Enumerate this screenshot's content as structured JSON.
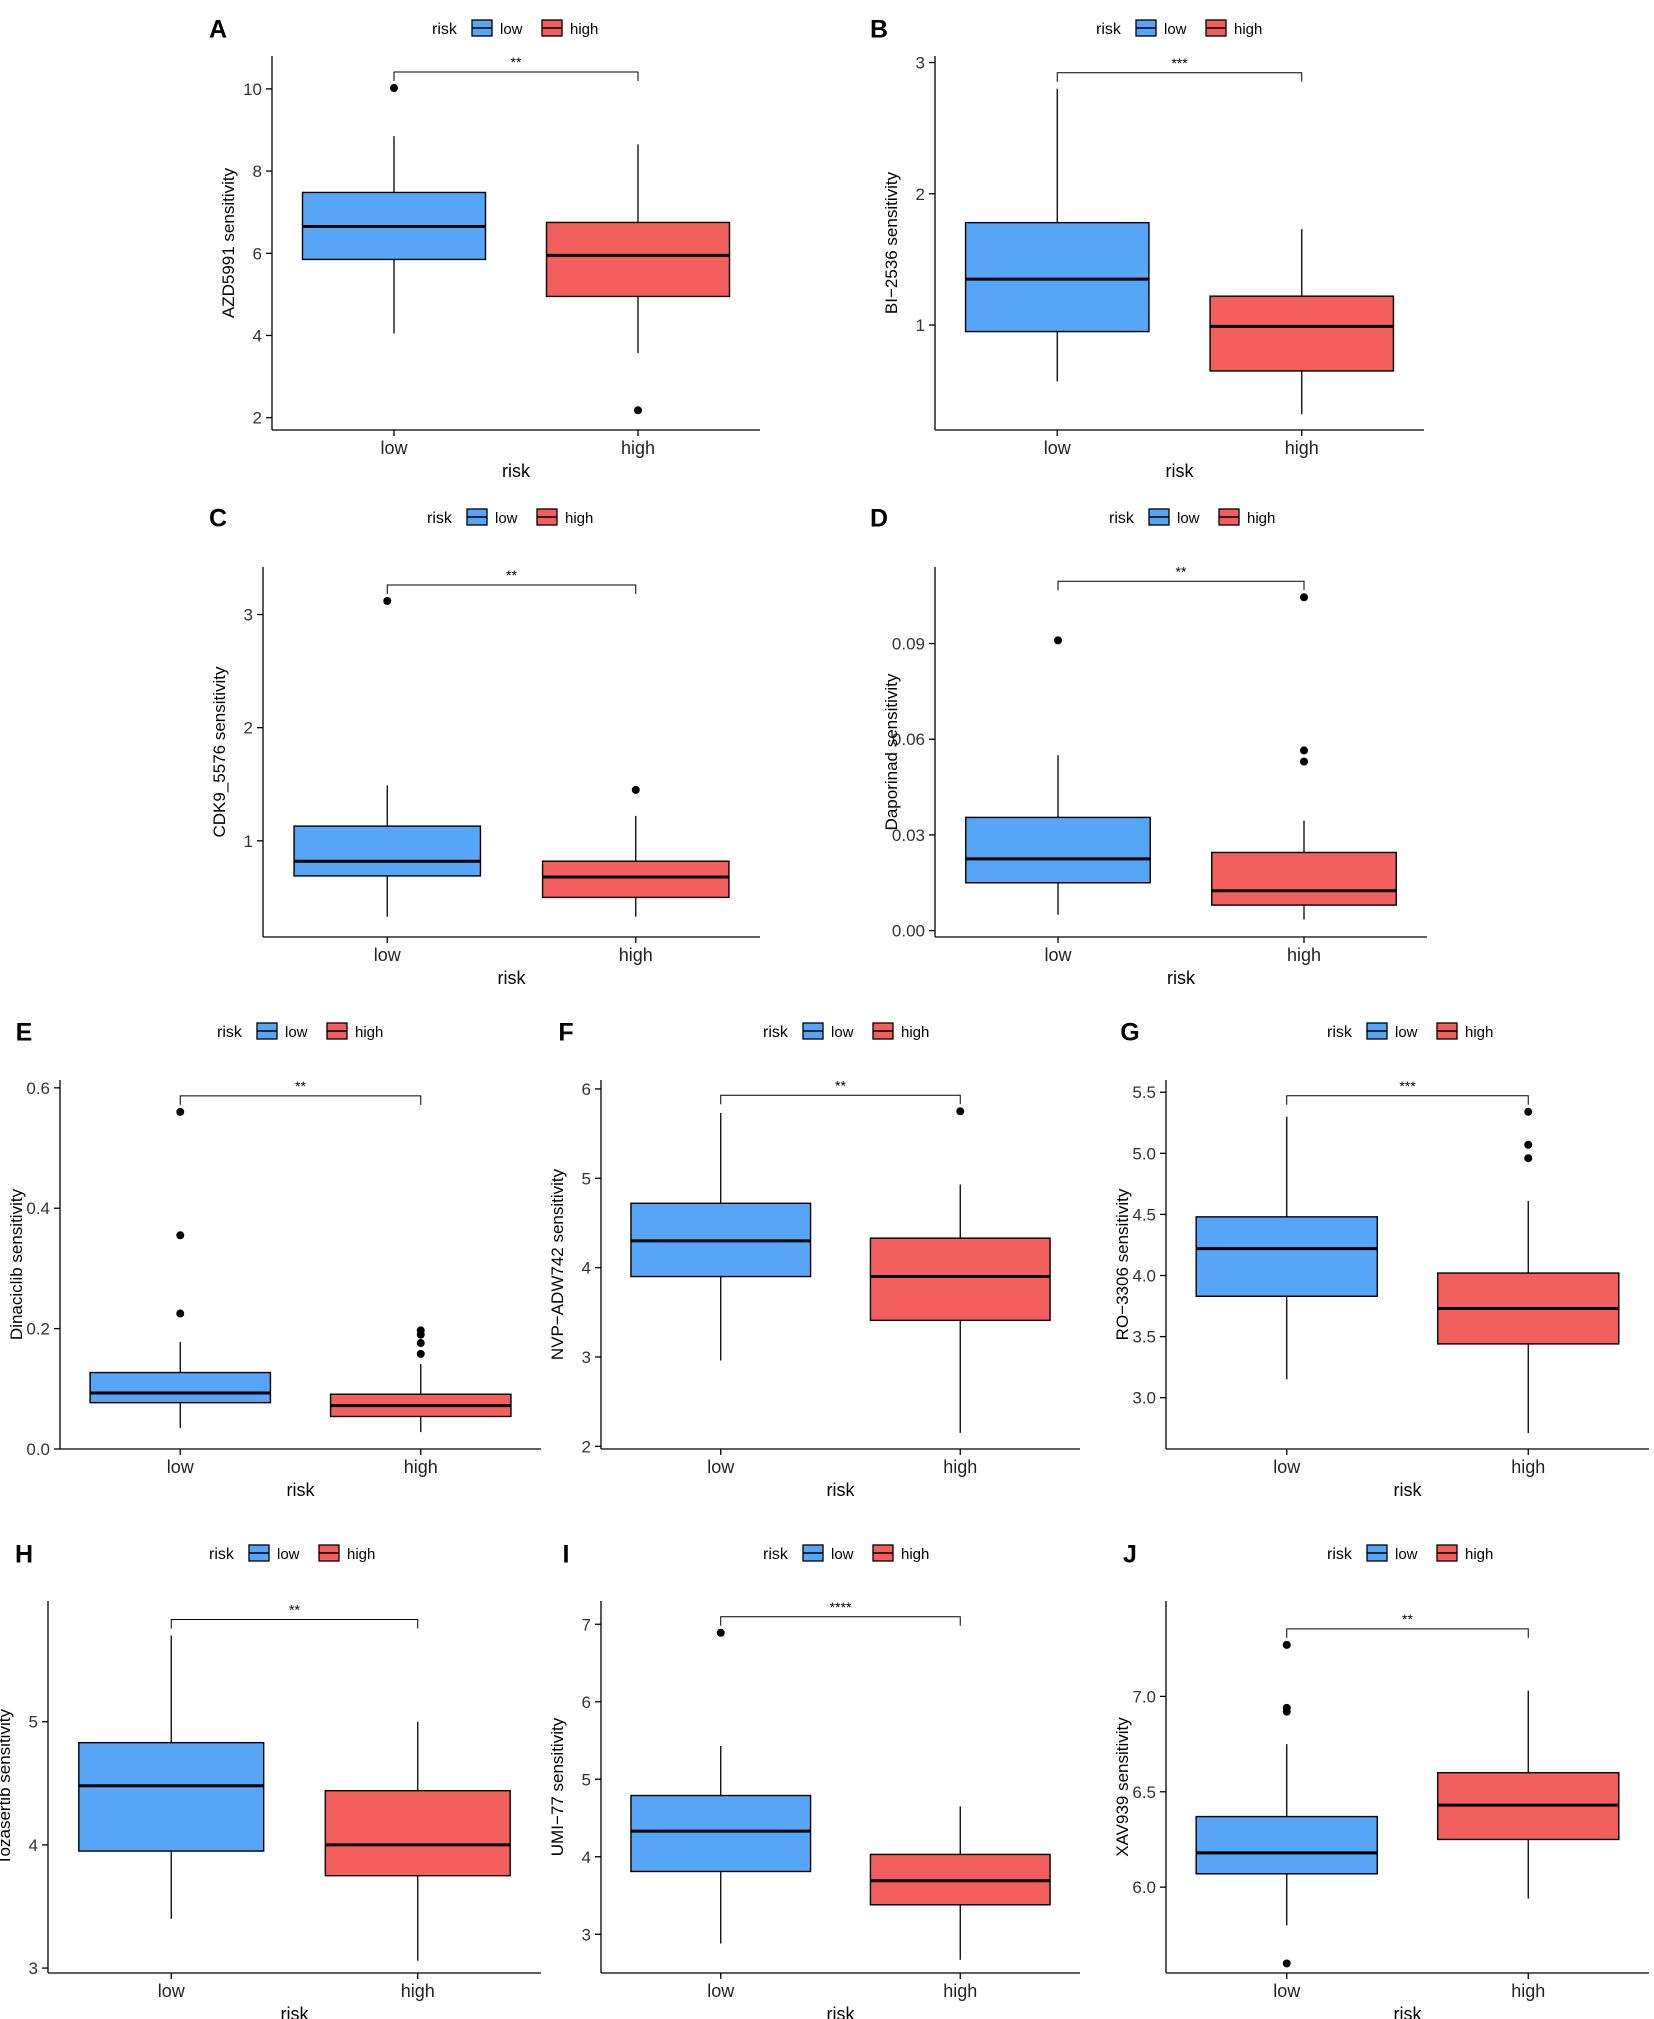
{
  "colors": {
    "low": "#56a5f6",
    "high": "#f25f5c",
    "axis": "#000000"
  },
  "chart_data": [
    {
      "type": "box",
      "panel_label": "A",
      "title": "",
      "xlabel": "risk",
      "ylabel": "AZD5991 sensitivity",
      "categories": [
        "low",
        "high"
      ],
      "legend_title": "risk",
      "legend": [
        "low",
        "high"
      ],
      "ylim": [
        1.7,
        10.8
      ],
      "yticks": [
        2,
        4,
        6,
        8,
        10
      ],
      "significance": "**",
      "boxes": [
        {
          "group": "low",
          "min": 4.05,
          "q1": 5.85,
          "median": 6.65,
          "q3": 7.48,
          "max": 8.85,
          "outliers": [
            10.02
          ]
        },
        {
          "group": "high",
          "min": 3.57,
          "q1": 4.95,
          "median": 5.95,
          "q3": 6.75,
          "max": 8.65,
          "outliers": [
            2.18
          ]
        }
      ]
    },
    {
      "type": "box",
      "panel_label": "B",
      "title": "",
      "xlabel": "risk",
      "ylabel": "BI−2536 sensitivity",
      "categories": [
        "low",
        "high"
      ],
      "legend_title": "risk",
      "legend": [
        "low",
        "high"
      ],
      "ylim": [
        0.2,
        3.05
      ],
      "yticks": [
        1,
        2,
        3
      ],
      "significance": "***",
      "boxes": [
        {
          "group": "low",
          "min": 0.57,
          "q1": 0.95,
          "median": 1.35,
          "q3": 1.78,
          "max": 2.8,
          "outliers": []
        },
        {
          "group": "high",
          "min": 0.32,
          "q1": 0.65,
          "median": 0.99,
          "q3": 1.22,
          "max": 1.73,
          "outliers": []
        }
      ]
    },
    {
      "type": "box",
      "panel_label": "C",
      "title": "",
      "xlabel": "risk",
      "ylabel": "CDK9_5576 sensitivity",
      "categories": [
        "low",
        "high"
      ],
      "legend_title": "risk",
      "legend": [
        "low",
        "high"
      ],
      "ylim": [
        0.15,
        3.42
      ],
      "yticks": [
        1,
        2,
        3
      ],
      "significance": "**",
      "boxes": [
        {
          "group": "low",
          "min": 0.33,
          "q1": 0.69,
          "median": 0.82,
          "q3": 1.13,
          "max": 1.49,
          "outliers": [
            3.12
          ]
        },
        {
          "group": "high",
          "min": 0.33,
          "q1": 0.5,
          "median": 0.68,
          "q3": 0.82,
          "max": 1.22,
          "outliers": [
            1.45
          ]
        }
      ]
    },
    {
      "type": "box",
      "panel_label": "D",
      "title": "",
      "xlabel": "risk",
      "ylabel": "Daporinad sensitivity",
      "categories": [
        "low",
        "high"
      ],
      "legend_title": "risk",
      "legend": [
        "low",
        "high"
      ],
      "ylim": [
        -0.002,
        0.114
      ],
      "yticks": [
        0.0,
        0.03,
        0.06,
        0.09
      ],
      "ytick_labels": [
        "0.00",
        "0.03",
        "0.06",
        "0.09"
      ],
      "significance": "**",
      "boxes": [
        {
          "group": "low",
          "min": 0.005,
          "q1": 0.015,
          "median": 0.0225,
          "q3": 0.0355,
          "max": 0.055,
          "outliers": [
            0.091
          ]
        },
        {
          "group": "high",
          "min": 0.0035,
          "q1": 0.008,
          "median": 0.0125,
          "q3": 0.0245,
          "max": 0.0345,
          "outliers": [
            0.053,
            0.0565,
            0.1045
          ]
        }
      ]
    },
    {
      "type": "box",
      "panel_label": "E",
      "title": "",
      "xlabel": "risk",
      "ylabel": "Dinaciclib sensitivity",
      "categories": [
        "low",
        "high"
      ],
      "legend_title": "risk",
      "legend": [
        "low",
        "high"
      ],
      "ylim": [
        0,
        0.613
      ],
      "yticks": [
        0.0,
        0.2,
        0.4,
        0.6
      ],
      "ytick_labels": [
        "0.0",
        "0.2",
        "0.4",
        "0.6"
      ],
      "significance": "**",
      "boxes": [
        {
          "group": "low",
          "min": 0.035,
          "q1": 0.077,
          "median": 0.093,
          "q3": 0.127,
          "max": 0.178,
          "outliers": [
            0.225,
            0.355,
            0.56
          ]
        },
        {
          "group": "high",
          "min": 0.028,
          "q1": 0.054,
          "median": 0.072,
          "q3": 0.091,
          "max": 0.141,
          "outliers": [
            0.158,
            0.176,
            0.19,
            0.197
          ]
        }
      ]
    },
    {
      "type": "box",
      "panel_label": "F",
      "title": "",
      "xlabel": "risk",
      "ylabel": "NVP−ADW742 sensitivity",
      "categories": [
        "low",
        "high"
      ],
      "legend_title": "risk",
      "legend": [
        "low",
        "high"
      ],
      "ylim": [
        1.97,
        6.1
      ],
      "yticks": [
        2,
        3,
        4,
        5,
        6
      ],
      "significance": "**",
      "boxes": [
        {
          "group": "low",
          "min": 2.96,
          "q1": 3.9,
          "median": 4.3,
          "q3": 4.72,
          "max": 5.73,
          "outliers": []
        },
        {
          "group": "high",
          "min": 2.15,
          "q1": 3.41,
          "median": 3.9,
          "q3": 4.33,
          "max": 4.93,
          "outliers": [
            5.75
          ]
        }
      ]
    },
    {
      "type": "box",
      "panel_label": "G",
      "title": "",
      "xlabel": "risk",
      "ylabel": "RO−3306 sensitivity",
      "categories": [
        "low",
        "high"
      ],
      "legend_title": "risk",
      "legend": [
        "low",
        "high"
      ],
      "ylim": [
        2.58,
        5.6
      ],
      "yticks": [
        3.0,
        3.5,
        4.0,
        4.5,
        5.0,
        5.5
      ],
      "ytick_labels": [
        "3.0",
        "3.5",
        "4.0",
        "4.5",
        "5.0",
        "5.5"
      ],
      "significance": "***",
      "boxes": [
        {
          "group": "low",
          "min": 3.15,
          "q1": 3.83,
          "median": 4.22,
          "q3": 4.48,
          "max": 5.3,
          "outliers": []
        },
        {
          "group": "high",
          "min": 2.71,
          "q1": 3.44,
          "median": 3.73,
          "q3": 4.02,
          "max": 4.61,
          "outliers": [
            4.96,
            5.07,
            5.34
          ]
        }
      ]
    },
    {
      "type": "box",
      "panel_label": "H",
      "title": "",
      "xlabel": "risk",
      "ylabel": "Tozasertib sensitivity",
      "categories": [
        "low",
        "high"
      ],
      "legend_title": "risk",
      "legend": [
        "low",
        "high"
      ],
      "ylim": [
        2.96,
        5.98
      ],
      "yticks": [
        3,
        4,
        5
      ],
      "significance": "**",
      "boxes": [
        {
          "group": "low",
          "min": 3.4,
          "q1": 3.95,
          "median": 4.48,
          "q3": 4.83,
          "max": 5.7,
          "outliers": []
        },
        {
          "group": "high",
          "min": 3.06,
          "q1": 3.75,
          "median": 4.0,
          "q3": 4.44,
          "max": 5.0,
          "outliers": []
        }
      ]
    },
    {
      "type": "box",
      "panel_label": "I",
      "title": "",
      "xlabel": "risk",
      "ylabel": "UMI−77 sensitivity",
      "categories": [
        "low",
        "high"
      ],
      "legend_title": "risk",
      "legend": [
        "low",
        "high"
      ],
      "ylim": [
        2.5,
        7.3
      ],
      "yticks": [
        3,
        4,
        5,
        6,
        7
      ],
      "significance": "****",
      "boxes": [
        {
          "group": "low",
          "min": 2.88,
          "q1": 3.81,
          "median": 4.33,
          "q3": 4.79,
          "max": 5.43,
          "outliers": [
            6.89
          ]
        },
        {
          "group": "high",
          "min": 2.67,
          "q1": 3.38,
          "median": 3.69,
          "q3": 4.03,
          "max": 4.65,
          "outliers": []
        }
      ]
    },
    {
      "type": "box",
      "panel_label": "J",
      "title": "",
      "xlabel": "risk",
      "ylabel": "XAV939 sensitivity",
      "categories": [
        "low",
        "high"
      ],
      "legend_title": "risk",
      "legend": [
        "low",
        "high"
      ],
      "ylim": [
        5.55,
        7.5
      ],
      "yticks": [
        6.0,
        6.5,
        7.0
      ],
      "ytick_labels": [
        "6.0",
        "6.5",
        "7.0"
      ],
      "significance": "**",
      "boxes": [
        {
          "group": "low",
          "min": 5.8,
          "q1": 6.07,
          "median": 6.18,
          "q3": 6.37,
          "max": 6.75,
          "outliers": [
            5.6,
            6.92,
            6.94,
            7.27
          ]
        },
        {
          "group": "high",
          "min": 5.94,
          "q1": 6.25,
          "median": 6.43,
          "q3": 6.6,
          "max": 7.03,
          "outliers": []
        }
      ]
    }
  ]
}
